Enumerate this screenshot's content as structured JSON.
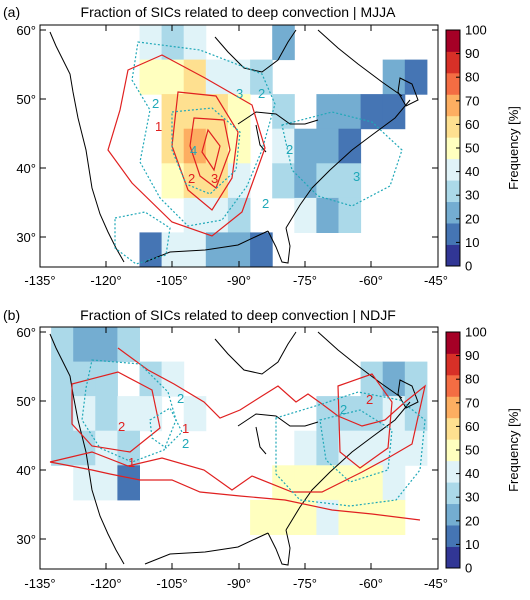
{
  "panels": [
    {
      "letter": "(a)",
      "title": "Fraction of SICs related to deep convection | MJJA",
      "season": "MJJA",
      "y_ticks": [
        "60°",
        "50°",
        "40°",
        "30°"
      ],
      "x_ticks": [
        "-135°",
        "-120°",
        "-105°",
        "-90°",
        "-75°",
        "-60°",
        "-45°"
      ],
      "contour_labels_red": [
        "1",
        "2",
        "3"
      ],
      "contour_labels_cyan": [
        "2",
        "3",
        "4"
      ]
    },
    {
      "letter": "(b)",
      "title": "Fraction of SICs related to deep convection | NDJF",
      "season": "NDJF",
      "y_ticks": [
        "60°",
        "50°",
        "40°",
        "30°"
      ],
      "x_ticks": [
        "-135°",
        "-120°",
        "-105°",
        "-90°",
        "-75°",
        "-60°",
        "-45°"
      ],
      "contour_labels_red": [
        "1",
        "2"
      ],
      "contour_labels_cyan": [
        "2"
      ]
    }
  ],
  "colorbar": {
    "label": "Frequency [%]",
    "ticks": [
      "100",
      "90",
      "80",
      "70",
      "60",
      "50",
      "40",
      "30",
      "20",
      "10",
      "0"
    ],
    "range": [
      0,
      100
    ],
    "colors": [
      "#313695",
      "#4575b4",
      "#74add1",
      "#abd9e9",
      "#e0f3f8",
      "#ffffbf",
      "#fee090",
      "#fdae61",
      "#f46d43",
      "#d73027",
      "#a50026"
    ]
  },
  "chart_data": {
    "type": "heatmap",
    "x_range": [
      -135,
      -45
    ],
    "y_range": [
      25,
      60
    ],
    "cell_size_deg": 5,
    "panels": [
      {
        "name": "MJJA",
        "cells": [
          {
            "lon": -110,
            "lat": 57.5,
            "v": 40
          },
          {
            "lon": -105,
            "lat": 57.5,
            "v": 35
          },
          {
            "lon": -100,
            "lat": 57.5,
            "v": 42
          },
          {
            "lon": -80,
            "lat": 57.5,
            "v": 22
          },
          {
            "lon": -110,
            "lat": 52.5,
            "v": 48
          },
          {
            "lon": -105,
            "lat": 52.5,
            "v": 52
          },
          {
            "lon": -100,
            "lat": 52.5,
            "v": 56
          },
          {
            "lon": -95,
            "lat": 52.5,
            "v": 45
          },
          {
            "lon": -90,
            "lat": 52.5,
            "v": 40
          },
          {
            "lon": -85,
            "lat": 52.5,
            "v": 32
          },
          {
            "lon": -55,
            "lat": 52.5,
            "v": 20
          },
          {
            "lon": -50,
            "lat": 52.5,
            "v": 15
          },
          {
            "lon": -105,
            "lat": 47.5,
            "v": 55
          },
          {
            "lon": -100,
            "lat": 47.5,
            "v": 62
          },
          {
            "lon": -95,
            "lat": 47.5,
            "v": 58
          },
          {
            "lon": -90,
            "lat": 47.5,
            "v": 48
          },
          {
            "lon": -80,
            "lat": 47.5,
            "v": 28
          },
          {
            "lon": -70,
            "lat": 47.5,
            "v": 24
          },
          {
            "lon": -65,
            "lat": 47.5,
            "v": 20
          },
          {
            "lon": -60,
            "lat": 47.5,
            "v": 18
          },
          {
            "lon": -55,
            "lat": 47.5,
            "v": 14
          },
          {
            "lon": -105,
            "lat": 42.5,
            "v": 57
          },
          {
            "lon": -100,
            "lat": 42.5,
            "v": 68
          },
          {
            "lon": -95,
            "lat": 42.5,
            "v": 63
          },
          {
            "lon": -90,
            "lat": 42.5,
            "v": 52
          },
          {
            "lon": -80,
            "lat": 42.5,
            "v": 38
          },
          {
            "lon": -75,
            "lat": 42.5,
            "v": 22
          },
          {
            "lon": -70,
            "lat": 42.5,
            "v": 20
          },
          {
            "lon": -65,
            "lat": 42.5,
            "v": 17
          },
          {
            "lon": -105,
            "lat": 37.5,
            "v": 50
          },
          {
            "lon": -100,
            "lat": 37.5,
            "v": 55
          },
          {
            "lon": -95,
            "lat": 37.5,
            "v": 60
          },
          {
            "lon": -90,
            "lat": 37.5,
            "v": 45
          },
          {
            "lon": -80,
            "lat": 37.5,
            "v": 34
          },
          {
            "lon": -75,
            "lat": 37.5,
            "v": 26
          },
          {
            "lon": -70,
            "lat": 37.5,
            "v": 35
          },
          {
            "lon": -65,
            "lat": 37.5,
            "v": 30
          },
          {
            "lon": -100,
            "lat": 32.5,
            "v": 40
          },
          {
            "lon": -95,
            "lat": 32.5,
            "v": 45
          },
          {
            "lon": -90,
            "lat": 32.5,
            "v": 36
          },
          {
            "lon": -75,
            "lat": 32.5,
            "v": 44
          },
          {
            "lon": -70,
            "lat": 32.5,
            "v": 24
          },
          {
            "lon": -65,
            "lat": 32.5,
            "v": 28
          },
          {
            "lon": -110,
            "lat": 27.5,
            "v": 18
          },
          {
            "lon": -105,
            "lat": 27.5,
            "v": 45
          },
          {
            "lon": -100,
            "lat": 27.5,
            "v": 38
          },
          {
            "lon": -95,
            "lat": 27.5,
            "v": 24
          },
          {
            "lon": -90,
            "lat": 27.5,
            "v": 20
          },
          {
            "lon": -85,
            "lat": 27.5,
            "v": 18
          }
        ]
      },
      {
        "name": "NDJF",
        "cells": [
          {
            "lon": -130,
            "lat": 57.5,
            "v": 30
          },
          {
            "lon": -125,
            "lat": 57.5,
            "v": 25
          },
          {
            "lon": -120,
            "lat": 57.5,
            "v": 20
          },
          {
            "lon": -115,
            "lat": 57.5,
            "v": 35
          },
          {
            "lon": -130,
            "lat": 52.5,
            "v": 32
          },
          {
            "lon": -125,
            "lat": 52.5,
            "v": 28
          },
          {
            "lon": -120,
            "lat": 52.5,
            "v": 35
          },
          {
            "lon": -110,
            "lat": 52.5,
            "v": 30
          },
          {
            "lon": -105,
            "lat": 52.5,
            "v": 42
          },
          {
            "lon": -60,
            "lat": 52.5,
            "v": 30
          },
          {
            "lon": -55,
            "lat": 52.5,
            "v": 26
          },
          {
            "lon": -50,
            "lat": 52.5,
            "v": 32
          },
          {
            "lon": -130,
            "lat": 47.5,
            "v": 28
          },
          {
            "lon": -125,
            "lat": 47.5,
            "v": 40
          },
          {
            "lon": -120,
            "lat": 47.5,
            "v": 32
          },
          {
            "lon": -115,
            "lat": 47.5,
            "v": 38
          },
          {
            "lon": -110,
            "lat": 47.5,
            "v": 45
          },
          {
            "lon": -100,
            "lat": 47.5,
            "v": 40
          },
          {
            "lon": -70,
            "lat": 47.5,
            "v": 30
          },
          {
            "lon": -65,
            "lat": 47.5,
            "v": 35
          },
          {
            "lon": -60,
            "lat": 47.5,
            "v": 28
          },
          {
            "lon": -55,
            "lat": 47.5,
            "v": 40
          },
          {
            "lon": -50,
            "lat": 47.5,
            "v": 30
          },
          {
            "lon": -130,
            "lat": 42.5,
            "v": 35
          },
          {
            "lon": -125,
            "lat": 42.5,
            "v": 30
          },
          {
            "lon": -120,
            "lat": 42.5,
            "v": 42
          },
          {
            "lon": -115,
            "lat": 42.5,
            "v": 30
          },
          {
            "lon": -75,
            "lat": 42.5,
            "v": 42
          },
          {
            "lon": -70,
            "lat": 42.5,
            "v": 35
          },
          {
            "lon": -65,
            "lat": 42.5,
            "v": 45
          },
          {
            "lon": -60,
            "lat": 42.5,
            "v": 38
          },
          {
            "lon": -55,
            "lat": 42.5,
            "v": 42
          },
          {
            "lon": -50,
            "lat": 42.5,
            "v": 38
          },
          {
            "lon": -125,
            "lat": 37.5,
            "v": 38
          },
          {
            "lon": -120,
            "lat": 37.5,
            "v": 40
          },
          {
            "lon": -115,
            "lat": 37.5,
            "v": 18
          },
          {
            "lon": -80,
            "lat": 37.5,
            "v": 48
          },
          {
            "lon": -75,
            "lat": 37.5,
            "v": 52
          },
          {
            "lon": -70,
            "lat": 37.5,
            "v": 50
          },
          {
            "lon": -65,
            "lat": 37.5,
            "v": 46
          },
          {
            "lon": -60,
            "lat": 37.5,
            "v": 50
          },
          {
            "lon": -55,
            "lat": 37.5,
            "v": 44
          },
          {
            "lon": -85,
            "lat": 32.5,
            "v": 50
          },
          {
            "lon": -80,
            "lat": 32.5,
            "v": 46
          },
          {
            "lon": -75,
            "lat": 32.5,
            "v": 48
          },
          {
            "lon": -70,
            "lat": 32.5,
            "v": 44
          },
          {
            "lon": -65,
            "lat": 32.5,
            "v": 52
          },
          {
            "lon": -60,
            "lat": 32.5,
            "v": 48
          },
          {
            "lon": -55,
            "lat": 32.5,
            "v": 46
          }
        ]
      }
    ]
  }
}
